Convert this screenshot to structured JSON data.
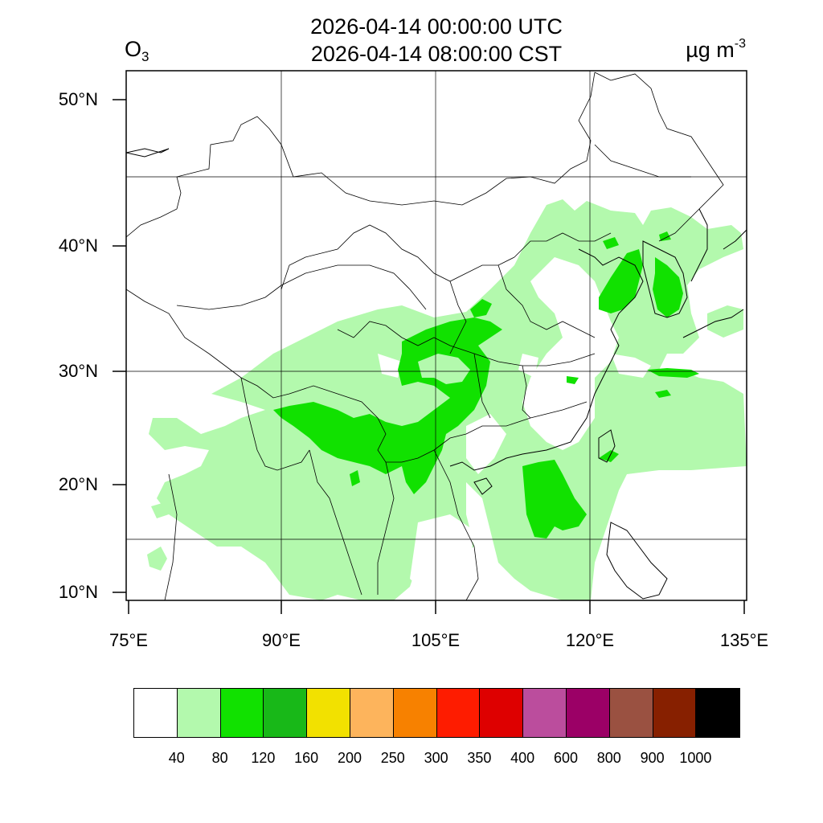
{
  "title_line1": "2026-04-14 00:00:00 UTC",
  "title_line2": "2026-04-14 08:00:00 CST",
  "species_base": "O",
  "species_sub": "3",
  "units_base": "µg m",
  "units_sup": "-3",
  "lat_labels": [
    "50°N",
    "40°N",
    "30°N",
    "20°N",
    "10°N"
  ],
  "lon_labels": [
    "75°E",
    "90°E",
    "105°E",
    "120°E",
    "135°E"
  ],
  "legend": {
    "colors": [
      "#ffffff",
      "#b3f9ad",
      "#11e100",
      "#18b818",
      "#f2e100",
      "#fdb45c",
      "#f78100",
      "#fe1c00",
      "#de0000",
      "#bb4d9d",
      "#9b0066",
      "#9a5141",
      "#872000",
      "#000000"
    ],
    "levels": [
      "40",
      "80",
      "120",
      "160",
      "200",
      "250",
      "300",
      "350",
      "400",
      "600",
      "800",
      "900",
      "1000"
    ]
  },
  "field_colors": {
    "light": "#b3f9ad",
    "medium": "#11e100"
  }
}
